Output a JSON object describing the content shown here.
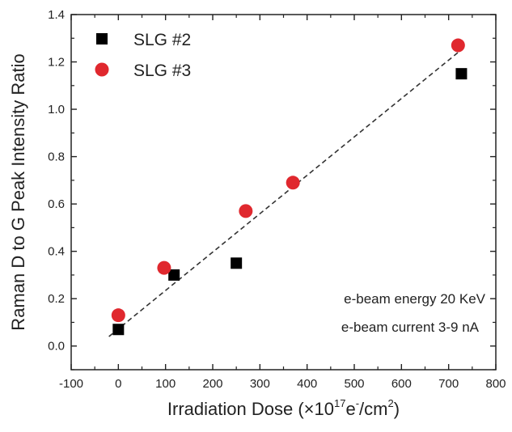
{
  "chart_data": {
    "type": "scatter",
    "xlabel": "Irradiation Dose (×10^17e^-/cm^2)",
    "xlabel_parts": {
      "pre": "Irradiation Dose (×10",
      "sup1": "17",
      "mid": "e",
      "sup2": "-",
      "post": "/cm",
      "sup3": "2",
      "end": ")"
    },
    "ylabel": "Raman D to G Peak Intensity Ratio",
    "xlim": [
      -100,
      800
    ],
    "ylim": [
      -0.1,
      1.4
    ],
    "xticks": [
      -100,
      0,
      100,
      200,
      300,
      400,
      500,
      600,
      700,
      800
    ],
    "yticks": [
      0.0,
      0.2,
      0.4,
      0.6,
      0.8,
      1.0,
      1.2,
      1.4
    ],
    "xtick_labels": [
      "-100",
      "0",
      "100",
      "200",
      "300",
      "400",
      "500",
      "600",
      "700",
      "800"
    ],
    "ytick_labels": [
      "0.0",
      "0.2",
      "0.4",
      "0.6",
      "0.8",
      "1.0",
      "1.2",
      "1.4"
    ],
    "grid": false,
    "legend_position": "top-left",
    "series": [
      {
        "name": "SLG #2",
        "marker": "square",
        "color": "#000000",
        "x": [
          0,
          118,
          250,
          727
        ],
        "y": [
          0.07,
          0.3,
          0.35,
          1.15
        ]
      },
      {
        "name": "SLG #3",
        "marker": "circle",
        "color": "#e0282e",
        "x": [
          0,
          97,
          270,
          370,
          720
        ],
        "y": [
          0.13,
          0.33,
          0.57,
          0.69,
          1.27
        ]
      }
    ],
    "fit_line": {
      "style": "dashed",
      "color": "#333333",
      "x": [
        -20,
        720
      ],
      "y": [
        0.04,
        1.24
      ]
    },
    "annotations": [
      "e-beam energy 20 KeV",
      "e-beam current 3-9 nA"
    ]
  }
}
